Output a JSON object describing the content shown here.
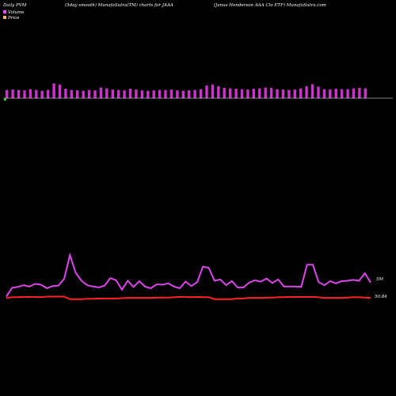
{
  "header": {
    "left": "Daily PVM",
    "center": "(5day smooth) MunafaSutra(TM) charts for JAAA",
    "right": "(Janus Henderson  AAA Clo  ETF) MunafaSutra.com"
  },
  "legend": [
    {
      "label": "Volume",
      "color": "#ff44ff"
    },
    {
      "label": "Price",
      "color": "#ffaa66"
    }
  ],
  "labels": {
    "volume_level": "5M",
    "price_level": "50.84"
  },
  "colors": {
    "background": "#000000",
    "volume_bar": "#cc33cc",
    "volume_line": "#dd44ee",
    "price_line": "#ff2222",
    "baseline": "#ffffff",
    "negative_bar": "#33cc33"
  },
  "chart_data": {
    "type": "bar",
    "title": "(5day smooth) MunafaSutra(TM) charts for JAAA",
    "series": [
      {
        "name": "Volume",
        "kind": "bar",
        "values": [
          2,
          2.1,
          2,
          1.9,
          2.2,
          2,
          1.8,
          2,
          3.6,
          3.3,
          2.3,
          2,
          1.9,
          1.8,
          2,
          1.9,
          2.6,
          2.4,
          2.1,
          2,
          1.9,
          2.3,
          2.1,
          1.9,
          1.8,
          1.9,
          2,
          2,
          2.1,
          1.9,
          1.8,
          1.9,
          2,
          2.2,
          3.1,
          3.3,
          2.9,
          2.5,
          2.4,
          2.3,
          2.2,
          2.1,
          2.3,
          2.4,
          2.6,
          2.5,
          2.2,
          2.1,
          2,
          2.1,
          2.4,
          2.9,
          3.4,
          2.8,
          2.2,
          2.1,
          2.3,
          2.2,
          2.2,
          2.4,
          2.5,
          2.4
        ]
      },
      {
        "name": "Volume",
        "kind": "line",
        "values": [
          0.6,
          2.6,
          2.8,
          3.2,
          2.9,
          3.5,
          3.3,
          2.5,
          3,
          3.1,
          4.6,
          10,
          6,
          4.2,
          3.2,
          2.9,
          2.7,
          3.1,
          4.8,
          4.3,
          2.2,
          4.2,
          2.8,
          4.1,
          2.9,
          2.5,
          3.4,
          3.3,
          3.6,
          2.9,
          2.5,
          4,
          3,
          3.9,
          7.4,
          7.1,
          4.2,
          4.5,
          3.2,
          4.1,
          2.7,
          2.7,
          3.8,
          4.3,
          4,
          4.7,
          3.7,
          4.5,
          2.9,
          2.9,
          2.9,
          2.8,
          7.8,
          7.8,
          3.9,
          3.2,
          4.1,
          3.6,
          4.1,
          4.2,
          4.4,
          4.2,
          5.9,
          3.8
        ]
      },
      {
        "name": "Price",
        "kind": "line",
        "values": [
          50.9,
          50.92,
          50.92,
          50.93,
          50.93,
          50.93,
          50.92,
          50.94,
          50.94,
          50.94,
          50.94,
          50.86,
          50.86,
          50.86,
          50.87,
          50.87,
          50.88,
          50.88,
          50.88,
          50.88,
          50.89,
          50.9,
          50.9,
          50.9,
          50.9,
          50.9,
          50.91,
          50.91,
          50.91,
          50.92,
          50.93,
          50.93,
          50.92,
          50.93,
          50.92,
          50.92,
          50.86,
          50.86,
          50.86,
          50.86,
          50.88,
          50.88,
          50.9,
          50.9,
          50.9,
          50.91,
          50.91,
          50.92,
          50.92,
          50.93,
          50.93,
          50.93,
          50.93,
          50.93,
          50.92,
          50.9,
          50.9,
          50.9,
          50.9,
          50.91,
          50.92,
          50.92,
          50.91,
          50.9
        ]
      }
    ],
    "value_labels": [
      "5M",
      "50.84"
    ]
  }
}
